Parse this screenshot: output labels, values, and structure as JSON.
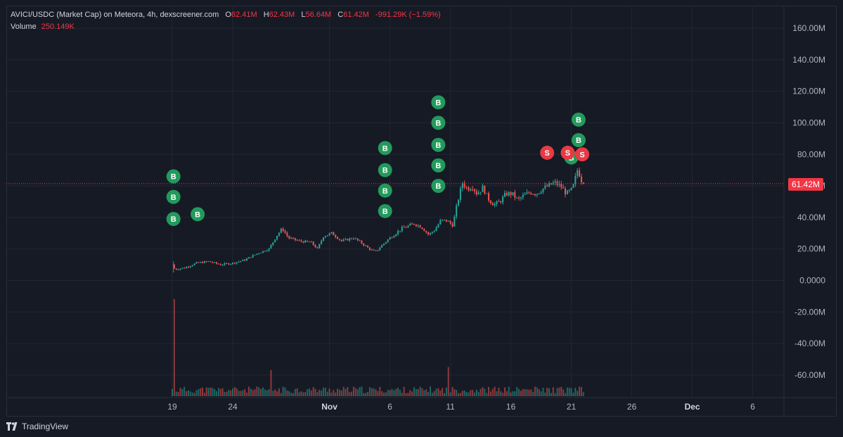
{
  "legend": {
    "symbol": "AVICI/USDC (Market Cap) on Meteora, 4h, dexscreener.com",
    "o_label": "O",
    "o_value": "62.41M",
    "h_label": "H",
    "h_value": "62.43M",
    "l_label": "L",
    "l_value": "56.64M",
    "c_label": "C",
    "c_value": "61.42M",
    "change": "-991.29K (−1.59%)",
    "volume_label": "Volume",
    "volume_value": "250.149K"
  },
  "footer": {
    "brand": "TradingView",
    "logo_icon": "tradingview-logo-icon"
  },
  "colors": {
    "up": "#26a69a",
    "down": "#ef5350",
    "buy_marker": "#229a5c",
    "sell_marker": "#e83a44",
    "background": "#161a25",
    "grid": "#232632"
  },
  "chart_data": {
    "type": "candlestick",
    "title": "AVICI/USDC (Market Cap) on Meteora, 4h, dexscreener.com",
    "y_ticks": [
      "160.00M",
      "140.00M",
      "120.00M",
      "100.00M",
      "80.00M",
      "60.00M",
      "40.00M",
      "20.00M",
      "0.0000",
      "-20.00M",
      "-40.00M",
      "-60.00M"
    ],
    "y_tick_values": [
      160,
      140,
      120,
      100,
      80,
      60,
      40,
      20,
      0,
      -20,
      -40,
      -60
    ],
    "ylim": [
      -73,
      167
    ],
    "y_unit": "M",
    "x_ticks": [
      {
        "label": "19",
        "day": 19
      },
      {
        "label": "24",
        "day": 24
      },
      {
        "label": "Nov",
        "day": 32
      },
      {
        "label": "6",
        "day": 37
      },
      {
        "label": "11",
        "day": 42
      },
      {
        "label": "16",
        "day": 47
      },
      {
        "label": "21",
        "day": 52
      },
      {
        "label": "26",
        "day": 57
      },
      {
        "label": "Dec",
        "day": 62
      },
      {
        "label": "6",
        "day": 67
      }
    ],
    "x_ticks_bold": [
      "Nov",
      "Dec"
    ],
    "xlim_days": [
      19.0,
      64.3
    ],
    "last_price": "61.42M",
    "last_price_value": 61.42,
    "price_anchors": [
      [
        19.0,
        10
      ],
      [
        19.2,
        7
      ],
      [
        20,
        8
      ],
      [
        21,
        11
      ],
      [
        22,
        12
      ],
      [
        23,
        10
      ],
      [
        24,
        11
      ],
      [
        25,
        13
      ],
      [
        26,
        17
      ],
      [
        27,
        20
      ],
      [
        27.6,
        28
      ],
      [
        28.1,
        33
      ],
      [
        28.6,
        27
      ],
      [
        29.5,
        25
      ],
      [
        30.5,
        24
      ],
      [
        31,
        20
      ],
      [
        31.5,
        28
      ],
      [
        32.2,
        30
      ],
      [
        33,
        25
      ],
      [
        34,
        27
      ],
      [
        34.6,
        24
      ],
      [
        35.3,
        20
      ],
      [
        35.8,
        18
      ],
      [
        36.3,
        22
      ],
      [
        37,
        27
      ],
      [
        38,
        33
      ],
      [
        39,
        36
      ],
      [
        39.6,
        34
      ],
      [
        40.2,
        29
      ],
      [
        40.7,
        32
      ],
      [
        41.2,
        38
      ],
      [
        41.7,
        38
      ],
      [
        42.2,
        35
      ],
      [
        42.6,
        50
      ],
      [
        43.0,
        62
      ],
      [
        43.4,
        58
      ],
      [
        43.8,
        60
      ],
      [
        44.2,
        55
      ],
      [
        44.7,
        59
      ],
      [
        45.1,
        52
      ],
      [
        45.6,
        48
      ],
      [
        46.1,
        50
      ],
      [
        46.6,
        55
      ],
      [
        47.1,
        55
      ],
      [
        47.6,
        51
      ],
      [
        48.1,
        54
      ],
      [
        48.6,
        56
      ],
      [
        49.1,
        55
      ],
      [
        49.6,
        58
      ],
      [
        50.1,
        60
      ],
      [
        50.6,
        62
      ],
      [
        51.1,
        60
      ],
      [
        51.6,
        55
      ],
      [
        52.1,
        58
      ],
      [
        52.3,
        64
      ],
      [
        52.5,
        70
      ],
      [
        52.7,
        67
      ],
      [
        52.9,
        62
      ],
      [
        53.0,
        61.4
      ]
    ],
    "volume": {
      "spike_day": 19.1,
      "spike_value": 1.0,
      "secondary_spikes": [
        {
          "day": 27.2,
          "value": 0.27
        },
        {
          "day": 41.9,
          "value": 0.3
        }
      ]
    },
    "markers": [
      {
        "type": "B",
        "day": 19.1,
        "price": 66
      },
      {
        "type": "B",
        "day": 19.1,
        "price": 53
      },
      {
        "type": "B",
        "day": 19.1,
        "price": 39
      },
      {
        "type": "B",
        "day": 21.1,
        "price": 42
      },
      {
        "type": "B",
        "day": 36.6,
        "price": 84
      },
      {
        "type": "B",
        "day": 36.6,
        "price": 70
      },
      {
        "type": "B",
        "day": 36.6,
        "price": 57
      },
      {
        "type": "B",
        "day": 36.6,
        "price": 44
      },
      {
        "type": "B",
        "day": 41.0,
        "price": 113
      },
      {
        "type": "B",
        "day": 41.0,
        "price": 100
      },
      {
        "type": "B",
        "day": 41.0,
        "price": 86
      },
      {
        "type": "B",
        "day": 41.0,
        "price": 73
      },
      {
        "type": "B",
        "day": 41.0,
        "price": 60
      },
      {
        "type": "B",
        "day": 52.6,
        "price": 102
      },
      {
        "type": "B",
        "day": 52.6,
        "price": 89
      },
      {
        "type": "B",
        "day": 52.0,
        "price": 78
      },
      {
        "type": "S",
        "day": 50.0,
        "price": 81
      },
      {
        "type": "S",
        "day": 51.7,
        "price": 81
      },
      {
        "type": "S",
        "day": 52.9,
        "price": 80
      }
    ]
  }
}
